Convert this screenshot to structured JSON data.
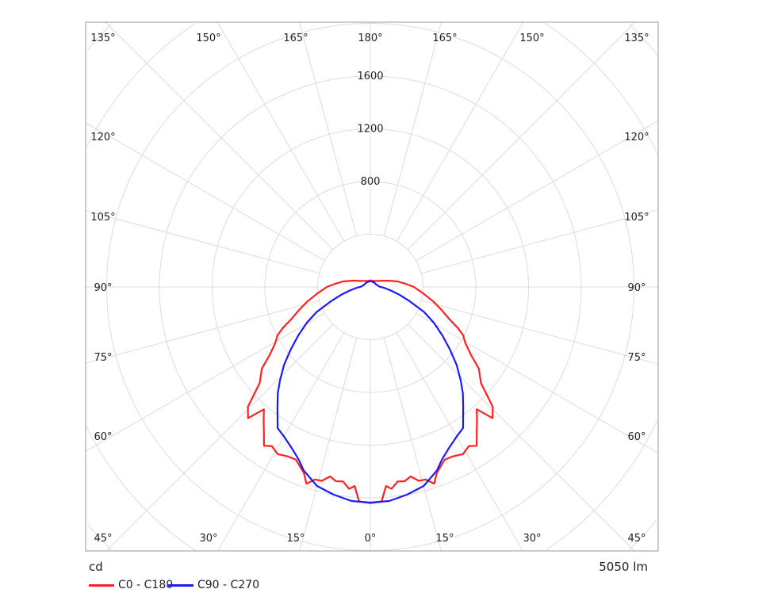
{
  "chart_data": {
    "type": "polar-line",
    "title": "",
    "unit_label": "cd",
    "flux_label": "5050 lm",
    "radial_ticks": [
      400,
      800,
      1200,
      1600,
      2000,
      2400,
      2800
    ],
    "radial_tick_labels": [
      "800",
      "1200",
      "1600"
    ],
    "radial_labeled_values": [
      800,
      1200,
      1600
    ],
    "angle_labels": {
      "top": [
        "135°",
        "150°",
        "165°",
        "180°",
        "165°",
        "150°",
        "135°"
      ],
      "left": [
        "120°",
        "105°",
        "90°",
        "75°",
        "60°"
      ],
      "right": [
        "120°",
        "105°",
        "90°",
        "75°",
        "60°"
      ],
      "bottom": [
        "45°",
        "30°",
        "15°",
        "0°",
        "15°",
        "30°",
        "45°"
      ]
    },
    "symmetric": true,
    "series": [
      {
        "name": "C0 - C180",
        "color": "#ff2020",
        "gamma": [
          0,
          3,
          4.5,
          6,
          8,
          10,
          12,
          14,
          16,
          18,
          19.6,
          21,
          23.3,
          26,
          29,
          31.7,
          33.8,
          36,
          38.5,
          41,
          43,
          45.6,
          49,
          53,
          56,
          59.4,
          62.5,
          65,
          67.7,
          72,
          77,
          83,
          90,
          95,
          101.6,
          110,
          125,
          140,
          160,
          180
        ],
        "cd": [
          1640,
          1630,
          1515,
          1540,
          1490,
          1497,
          1470,
          1516,
          1520,
          1569,
          1500,
          1470,
          1427,
          1430,
          1450,
          1420,
          1450,
          1373,
          1300,
          1230,
          1360,
          1300,
          1113,
          1030,
          920,
          838,
          794,
          730,
          650,
          570,
          490,
          405,
          330,
          270,
          210,
          140,
          80,
          60,
          50,
          50
        ]
      },
      {
        "name": "C90 - C270",
        "color": "#1a1aff",
        "gamma": [
          0,
          5,
          10,
          15,
          20,
          22.4,
          26,
          30,
          33.3,
          37.8,
          41,
          44,
          48,
          52,
          56,
          60.6,
          65,
          70,
          75,
          80,
          87,
          92,
          110,
          140,
          180
        ],
        "cd": [
          1636,
          1630,
          1600,
          1563,
          1480,
          1420,
          1360,
          1310,
          1281,
          1149,
          1070,
          987,
          880,
          763,
          660,
          553,
          450,
          319,
          230,
          160,
          102,
          70,
          50,
          45,
          45
        ]
      }
    ]
  }
}
